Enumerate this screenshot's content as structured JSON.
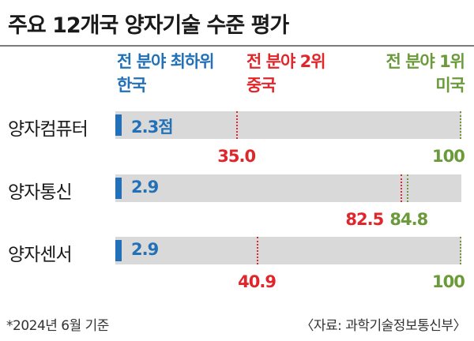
{
  "title": "주요 12개국 양자기술 수준 평가",
  "legend": {
    "lowest": {
      "label": "전 분야 최하위",
      "country": "한국",
      "color": "#2271b8"
    },
    "second": {
      "label": "전 분야 2위",
      "country": "중국",
      "color": "#e0262b"
    },
    "first": {
      "label": "전 분야 1위",
      "country": "미국",
      "color": "#6a9a3a"
    }
  },
  "chart_data": {
    "type": "bar",
    "title": "주요 12개국 양자기술 수준 평가",
    "categories": [
      "양자컴퓨터",
      "양자통신",
      "양자센서"
    ],
    "series": [
      {
        "name": "한국",
        "values": [
          2.3,
          2.9,
          2.9
        ],
        "labels": [
          "2.3점",
          "2.9",
          "2.9"
        ]
      },
      {
        "name": "중국",
        "values": [
          35.0,
          82.5,
          40.9
        ],
        "labels": [
          "35.0",
          "82.5",
          "40.9"
        ]
      },
      {
        "name": "미국",
        "values": [
          100,
          84.8,
          100
        ],
        "labels": [
          "100",
          "84.8",
          "100"
        ]
      }
    ],
    "xlim": [
      0,
      100
    ],
    "grid": false
  },
  "footnote": "*2024년 6월 기준",
  "source": "〈자료: 과학기술정보통신부〉"
}
